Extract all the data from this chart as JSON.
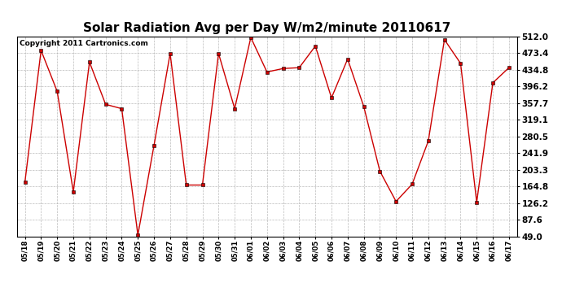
{
  "title": "Solar Radiation Avg per Day W/m2/minute 20110617",
  "copyright": "Copyright 2011 Cartronics.com",
  "dates": [
    "05/18",
    "05/19",
    "05/20",
    "05/21",
    "05/22",
    "05/23",
    "05/24",
    "05/25",
    "05/26",
    "05/27",
    "05/28",
    "05/29",
    "05/30",
    "05/31",
    "06/01",
    "06/02",
    "06/03",
    "06/04",
    "06/05",
    "06/06",
    "06/07",
    "06/08",
    "06/09",
    "06/10",
    "06/11",
    "06/12",
    "06/13",
    "06/14",
    "06/15",
    "06/16",
    "06/17"
  ],
  "values": [
    175,
    480,
    385,
    152,
    453,
    355,
    345,
    52,
    260,
    473,
    168,
    168,
    473,
    345,
    510,
    430,
    438,
    440,
    490,
    370,
    460,
    350,
    200,
    130,
    170,
    270,
    505,
    450,
    128,
    405,
    440
  ],
  "line_color": "#cc0000",
  "marker": "s",
  "marker_size": 2.5,
  "background_color": "#ffffff",
  "plot_bg_color": "#ffffff",
  "grid_color": "#aaaaaa",
  "yticks": [
    49.0,
    87.6,
    126.2,
    164.8,
    203.3,
    241.9,
    280.5,
    319.1,
    357.7,
    396.2,
    434.8,
    473.4,
    512.0
  ],
  "ymin": 49.0,
  "ymax": 512.0,
  "title_fontsize": 11,
  "copyright_fontsize": 6.5,
  "tick_fontsize": 7.5,
  "xtick_fontsize": 6
}
